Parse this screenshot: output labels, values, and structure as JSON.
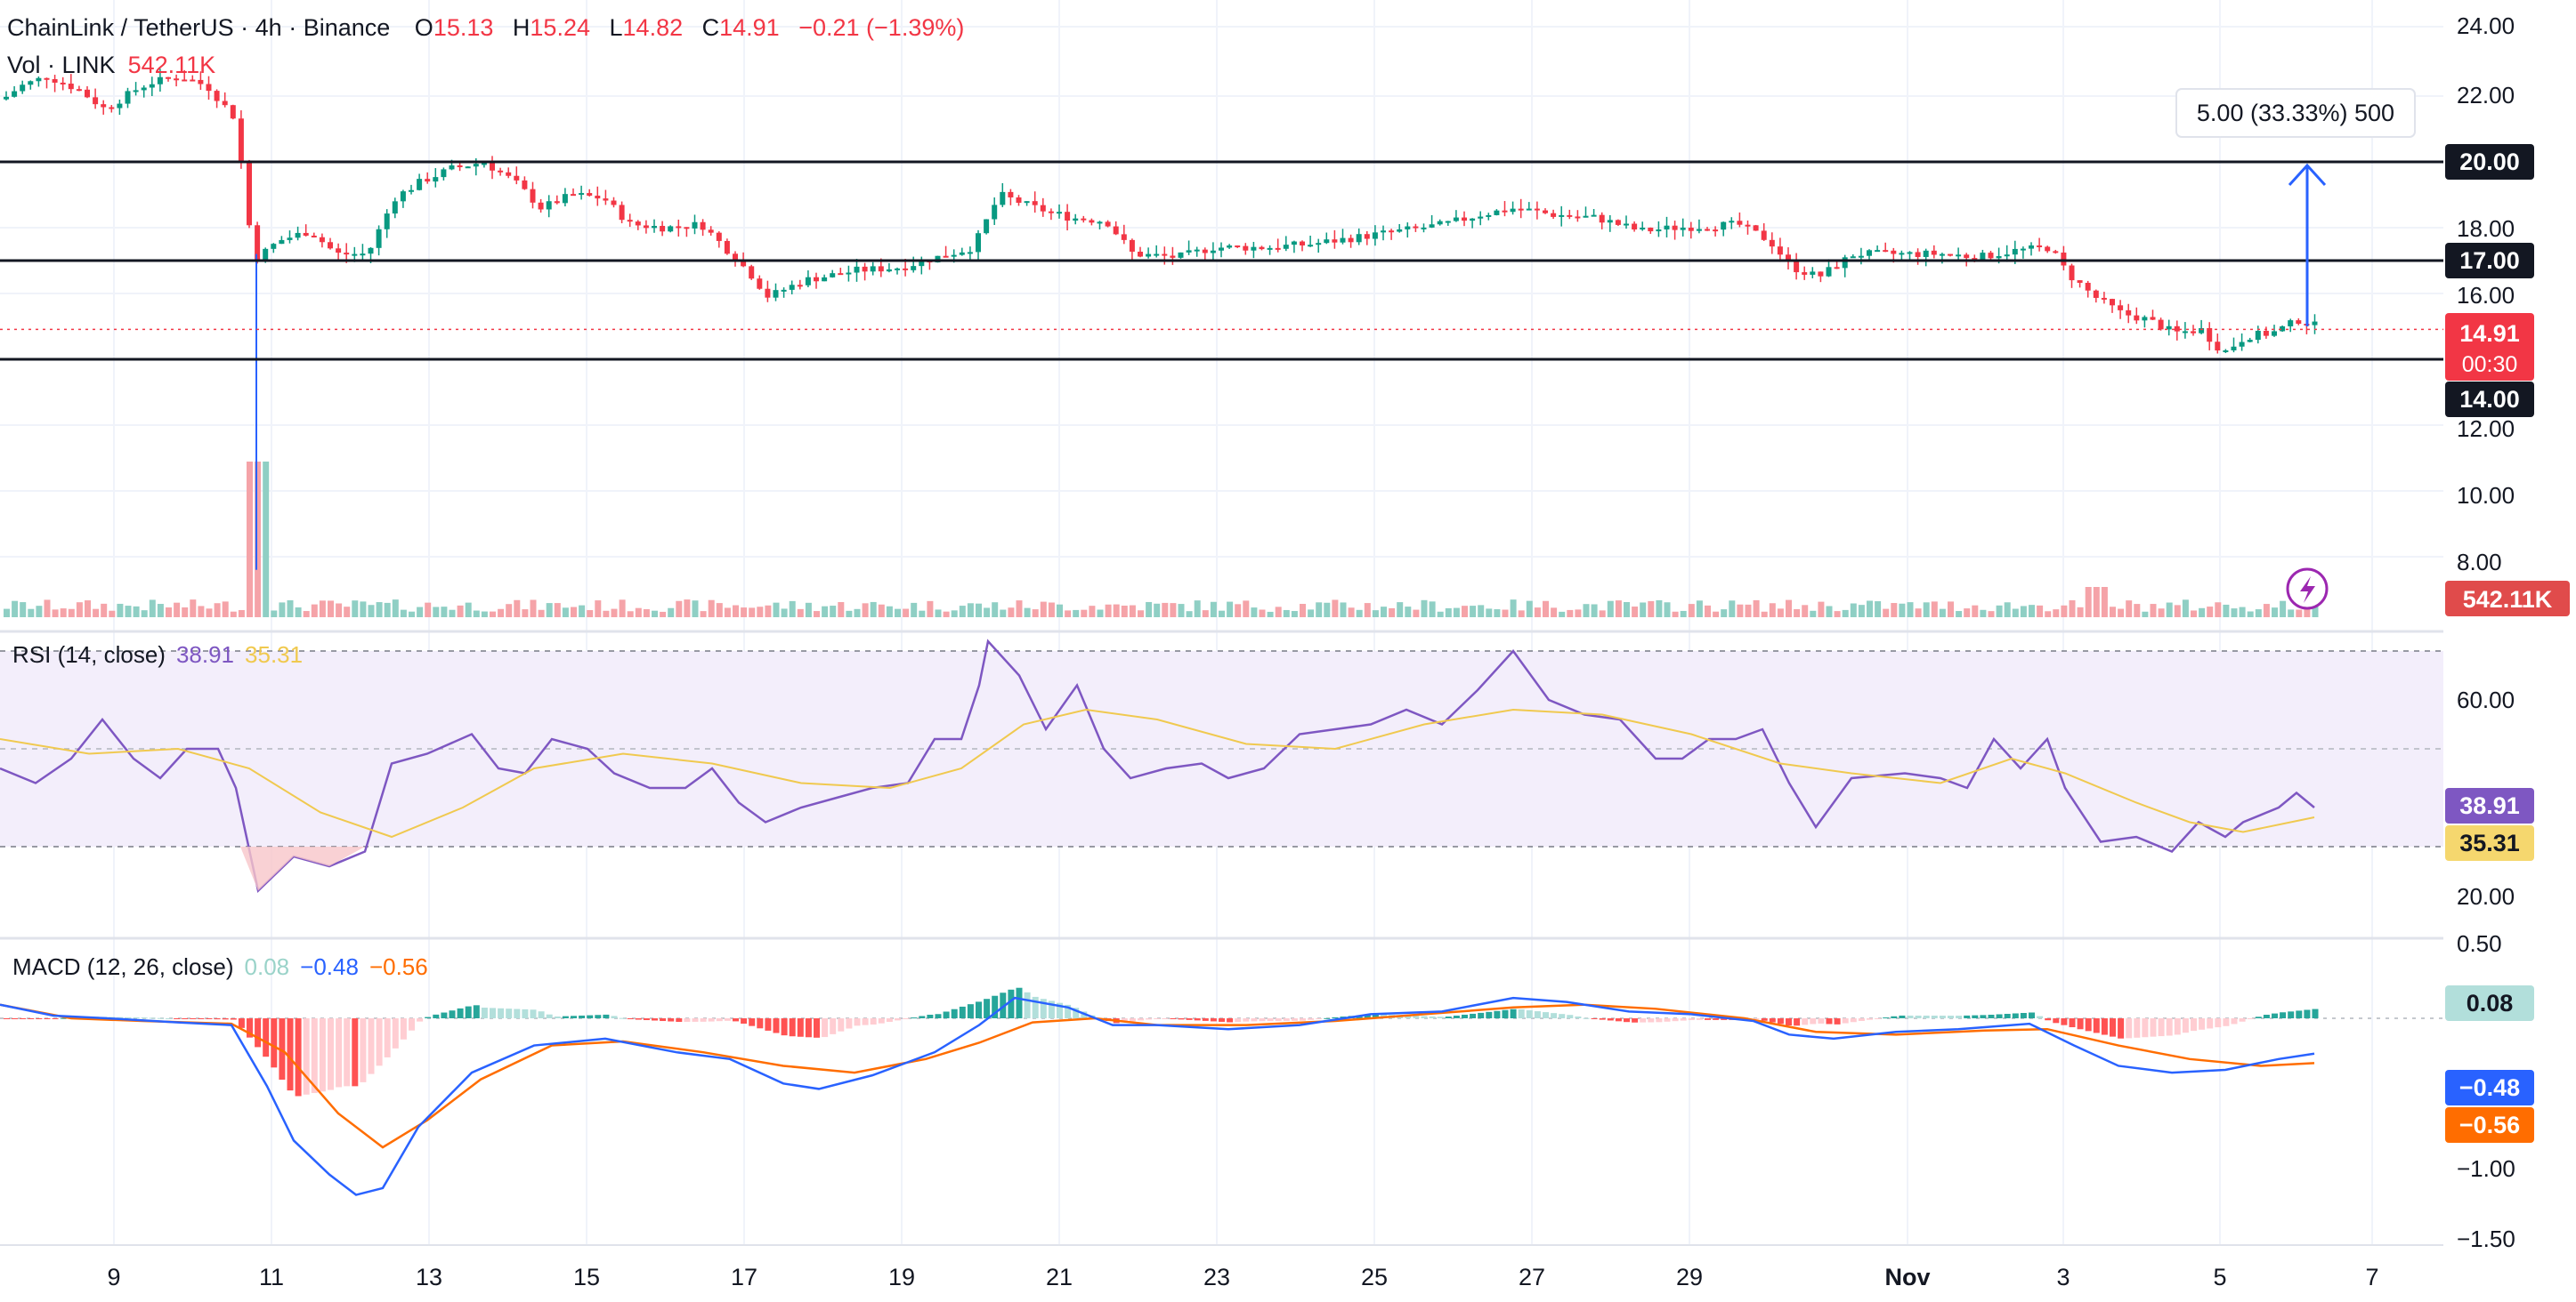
{
  "header": {
    "pair": "ChainLink / TetherUS",
    "interval": "4h",
    "exchange": "Binance",
    "open_label": "O",
    "open": "15.13",
    "high_label": "H",
    "high": "15.24",
    "low_label": "L",
    "low": "14.82",
    "close_label": "C",
    "close": "14.91",
    "change": "−0.21 (−1.39%)",
    "vol_label": "Vol · LINK",
    "vol_value": "542.11K"
  },
  "price_axis": {
    "ticks": [
      "24.00",
      "22.00",
      "18.00",
      "16.00",
      "12.00",
      "10.00",
      "8.00"
    ],
    "tags": {
      "level_20": "20.00",
      "level_17": "17.00",
      "level_14": "14.00",
      "last_price": "14.91",
      "countdown": "00:30",
      "volume": "542.11K"
    }
  },
  "measure_tool": {
    "label": "5.00 (33.33%) 500",
    "from": 15.0,
    "to": 20.0
  },
  "levels": [
    20.0,
    17.0,
    14.0
  ],
  "rsi": {
    "title": "RSI (14, close)",
    "value": "38.91",
    "ma_value": "35.31",
    "ticks": [
      "60.00",
      "20.00"
    ],
    "upper": 70,
    "mid": 50,
    "lower": 30
  },
  "macd": {
    "title": "MACD (12, 26, close)",
    "hist_value": "0.08",
    "macd_value": "−0.48",
    "signal_value": "−0.56",
    "ticks": [
      "0.50",
      "−1.00",
      "−1.50"
    ]
  },
  "time_axis": [
    "9",
    "11",
    "13",
    "15",
    "17",
    "19",
    "21",
    "23",
    "25",
    "27",
    "29",
    "Nov",
    "3",
    "5",
    "7"
  ],
  "colors": {
    "up": "#089981",
    "down": "#f23645",
    "vol_up": "#8fcfc4",
    "vol_down": "#f5a3a8",
    "rsi_line": "#7e57c2",
    "rsi_ma": "#f0c94f",
    "rsi_band": "#f3eefb",
    "macd_line": "#2962ff",
    "signal_line": "#ff6d00",
    "hist_up_strong": "#26a69a",
    "hist_up_weak": "#b2dfdb",
    "hist_down_strong": "#ff5252",
    "hist_down_weak": "#ffcdd2"
  },
  "chart_data": {
    "type": "line",
    "title": "ChainLink / TetherUS · 4h · Binance",
    "series": [
      {
        "name": "ChainLink / TetherUS",
        "x": [
          "9",
          "11",
          "13",
          "15",
          "17",
          "19",
          "21",
          "23",
          "25",
          "27",
          "29",
          "Nov",
          "3",
          "5",
          "7"
        ],
        "values": [
          21.8,
          17.0,
          19.9,
          18.8,
          16.0,
          16.8,
          19.0,
          17.2,
          17.6,
          18.9,
          18.0,
          17.1,
          16.8,
          13.9,
          14.91
        ]
      }
    ],
    "ylim": [
      7,
      24.5
    ]
  }
}
